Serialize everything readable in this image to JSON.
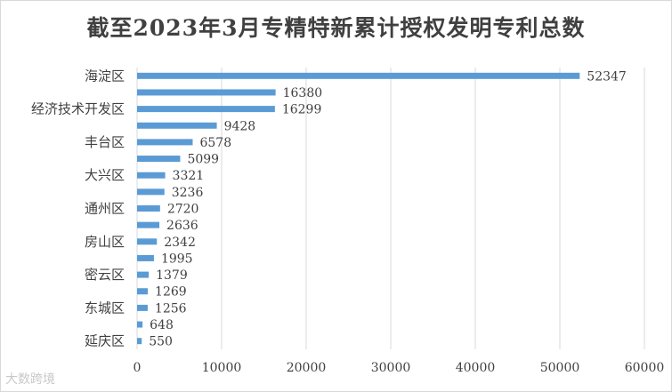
{
  "chart_data": {
    "type": "bar",
    "orientation": "horizontal",
    "title": "截至2023年3月专精特新累计授权发明专利总数",
    "categories": [
      "海淀区",
      "",
      "经济技术开发区",
      "",
      "丰台区",
      "",
      "大兴区",
      "",
      "通州区",
      "",
      "房山区",
      "",
      "密云区",
      "",
      "东城区",
      "",
      "延庆区"
    ],
    "values": [
      52347,
      16380,
      16299,
      9428,
      6578,
      5099,
      3321,
      3236,
      2720,
      2636,
      2342,
      1995,
      1379,
      1269,
      1256,
      648,
      550
    ],
    "xlim": [
      0,
      60000
    ],
    "xticks": [
      0,
      10000,
      20000,
      30000,
      40000,
      50000,
      60000
    ],
    "grid": true,
    "bar_color": "#5b9bd5"
  },
  "watermark": "大数跨境"
}
